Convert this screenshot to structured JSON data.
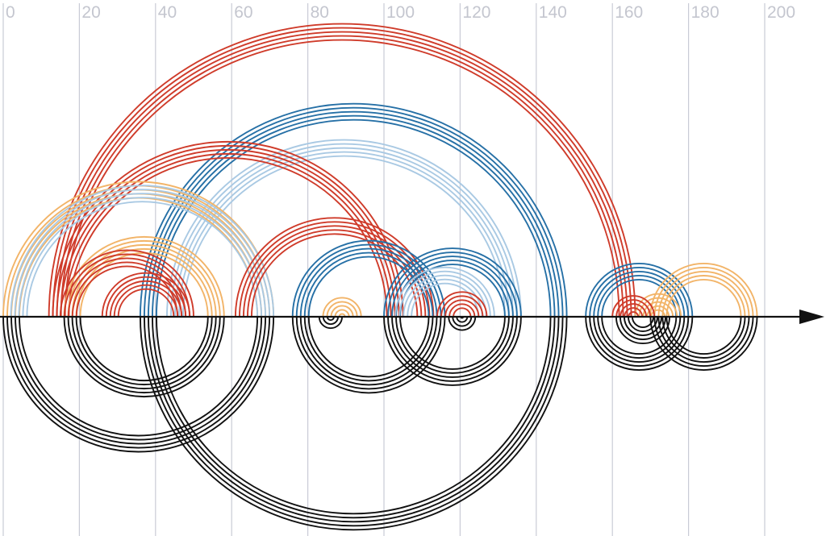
{
  "palette": {
    "red": "#cf3b2a",
    "blue": "#2670a6",
    "lightblue": "#a9c9e3",
    "orange": "#f2b468",
    "black": "#111111",
    "grid": "#c9cbd6",
    "tick_text": "#c4c6cf"
  },
  "chart_data": {
    "type": "arc-diagram",
    "x_ticks": [
      "0",
      "20",
      "40",
      "60",
      "80",
      "100",
      "120",
      "140",
      "160",
      "180",
      "200"
    ],
    "xlim": [
      0,
      216
    ],
    "axis_arrow": "right",
    "arcs_above": [
      {
        "color": "red",
        "from": 12,
        "to": 166
      },
      {
        "color": "red",
        "from": 13,
        "to": 105
      },
      {
        "color": "red",
        "from": 61,
        "to": 113
      },
      {
        "color": "red",
        "from": 15,
        "to": 50
      },
      {
        "color": "red",
        "from": 26,
        "to": 49
      },
      {
        "color": "red",
        "from": 114,
        "to": 127
      },
      {
        "color": "red",
        "from": 160,
        "to": 171
      },
      {
        "color": "blue",
        "from": 36,
        "to": 148
      },
      {
        "color": "blue",
        "from": 100,
        "to": 136
      },
      {
        "color": "blue",
        "from": 76,
        "to": 116
      },
      {
        "color": "blue",
        "from": 153,
        "to": 181
      },
      {
        "color": "lightblue",
        "from": 43,
        "to": 136
      },
      {
        "color": "lightblue",
        "from": 2,
        "to": 71
      },
      {
        "color": "lightblue",
        "from": 103,
        "to": 129
      },
      {
        "color": "orange",
        "from": 0,
        "to": 71
      },
      {
        "color": "orange",
        "from": 16,
        "to": 58
      },
      {
        "color": "orange",
        "from": 84,
        "to": 94
      },
      {
        "color": "orange",
        "from": 170,
        "to": 198
      },
      {
        "color": "orange",
        "from": 166,
        "to": 178
      }
    ],
    "arcs_below": [
      {
        "color": "black",
        "from": 0,
        "to": 71
      },
      {
        "color": "black",
        "from": 16,
        "to": 58
      },
      {
        "color": "black",
        "from": 36,
        "to": 148
      },
      {
        "color": "black",
        "from": 76,
        "to": 116
      },
      {
        "color": "black",
        "from": 100,
        "to": 136
      },
      {
        "color": "black",
        "from": 83,
        "to": 89
      },
      {
        "color": "black",
        "from": 117,
        "to": 124
      },
      {
        "color": "black",
        "from": 153,
        "to": 181
      },
      {
        "color": "black",
        "from": 170,
        "to": 198
      },
      {
        "color": "black",
        "from": 161,
        "to": 175
      }
    ]
  }
}
